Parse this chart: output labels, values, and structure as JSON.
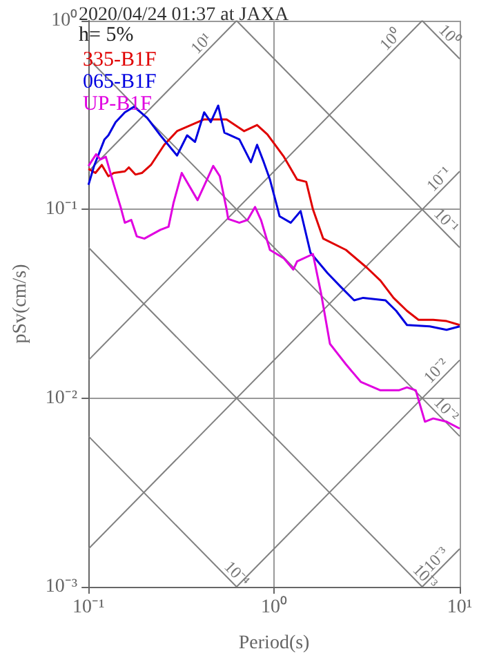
{
  "chart_data": {
    "type": "line",
    "title": "2020/04/24 01:37 at JAXA",
    "xlabel": "Period(s)",
    "ylabel": "pSv(cm/s)",
    "legend_title": "h= 5%",
    "legend": "top left",
    "grid": true,
    "log": "xy",
    "xlim": [
      0.1,
      10
    ],
    "xticks": [
      {
        "value": 0.1,
        "label": "10⁻¹"
      },
      {
        "value": 1,
        "label": "10⁰"
      },
      {
        "value": 10,
        "label": "10¹"
      }
    ],
    "ylim": [
      0.001,
      1
    ],
    "yticks": [
      {
        "value": 0.001,
        "label": "10⁻³"
      },
      {
        "value": 0.01,
        "label": "10⁻²"
      },
      {
        "value": 0.1,
        "label": "10⁻¹"
      },
      {
        "value": 1,
        "label": "10⁰"
      }
    ],
    "series": [
      {
        "type": "line",
        "color": "#808080",
        "x": [
          0.1,
          0.628
        ],
        "values": [
          0.159,
          1
        ]
      },
      {
        "type": "line",
        "color": "#808080",
        "x": [
          0.1,
          6.28
        ],
        "values": [
          0.0159,
          1
        ]
      },
      {
        "type": "line",
        "color": "#808080",
        "x": [
          0.1,
          10
        ],
        "values": [
          0.00159,
          0.159
        ]
      },
      {
        "type": "line",
        "color": "#808080",
        "x": [
          0.628,
          10
        ],
        "values": [
          0.001,
          0.0159
        ]
      },
      {
        "type": "line",
        "color": "#808080",
        "x": [
          6.28,
          10
        ],
        "values": [
          0.001,
          0.00159
        ]
      },
      {
        "type": "line",
        "color": "#808080",
        "x": [
          6.28,
          10
        ],
        "values": [
          1,
          0.628
        ]
      },
      {
        "type": "line",
        "color": "#808080",
        "x": [
          0.628,
          10
        ],
        "values": [
          1,
          0.0628
        ]
      },
      {
        "type": "line",
        "color": "#808080",
        "x": [
          0.1,
          10
        ],
        "values": [
          0.628,
          0.00628
        ]
      },
      {
        "type": "line",
        "color": "#808080",
        "x": [
          0.1,
          6.28
        ],
        "values": [
          0.0628,
          0.001
        ]
      },
      {
        "type": "line",
        "color": "#808080",
        "x": [
          0.1,
          0.628
        ],
        "values": [
          0.00628,
          0.001
        ]
      },
      {
        "name": "335-B1F",
        "color": "#e00000",
        "x": [
          0.1,
          0.109,
          0.118,
          0.128,
          0.137,
          0.157,
          0.165,
          0.179,
          0.194,
          0.217,
          0.256,
          0.3,
          0.42,
          0.555,
          0.69,
          0.81,
          0.92,
          1.13,
          1.33,
          1.49,
          1.62,
          1.84,
          2.44,
          3.17,
          3.74,
          4.4,
          5.2,
          6.0,
          7.2,
          8.5,
          10
        ],
        "values": [
          0.164,
          0.156,
          0.172,
          0.15,
          0.156,
          0.159,
          0.167,
          0.153,
          0.156,
          0.172,
          0.22,
          0.26,
          0.3,
          0.3,
          0.26,
          0.28,
          0.25,
          0.19,
          0.144,
          0.14,
          0.1,
          0.07,
          0.061,
          0.049,
          0.042,
          0.034,
          0.029,
          0.026,
          0.026,
          0.0256,
          0.0244
        ]
      },
      {
        "name": "065-B1F",
        "color": "#0000e0",
        "x": [
          0.1,
          0.107,
          0.122,
          0.128,
          0.14,
          0.157,
          0.176,
          0.207,
          0.244,
          0.3,
          0.34,
          0.375,
          0.42,
          0.456,
          0.5,
          0.54,
          0.65,
          0.75,
          0.81,
          0.88,
          0.95,
          1.04,
          1.07,
          1.23,
          1.39,
          1.57,
          1.94,
          2.28,
          2.7,
          3.02,
          3.98,
          4.55,
          5.2,
          6.9,
          8.5,
          10
        ],
        "values": [
          0.135,
          0.169,
          0.235,
          0.247,
          0.29,
          0.327,
          0.35,
          0.306,
          0.247,
          0.193,
          0.247,
          0.228,
          0.327,
          0.29,
          0.355,
          0.255,
          0.235,
          0.178,
          0.22,
          0.178,
          0.144,
          0.103,
          0.092,
          0.085,
          0.098,
          0.059,
          0.046,
          0.039,
          0.033,
          0.034,
          0.033,
          0.029,
          0.0244,
          0.024,
          0.023,
          0.024
        ]
      },
      {
        "name": "UP-B1F",
        "color": "#e000e0",
        "x": [
          0.1,
          0.11,
          0.116,
          0.124,
          0.137,
          0.149,
          0.157,
          0.17,
          0.182,
          0.2,
          0.244,
          0.27,
          0.287,
          0.318,
          0.387,
          0.47,
          0.51,
          0.555,
          0.566,
          0.65,
          0.72,
          0.79,
          0.85,
          0.95,
          1.13,
          1.27,
          1.33,
          1.62,
          1.79,
          2.0,
          2.44,
          2.93,
          3.74,
          4.7,
          5.2,
          5.8,
          6.5,
          7.2,
          8.5,
          10
        ],
        "values": [
          0.17,
          0.196,
          0.184,
          0.19,
          0.135,
          0.103,
          0.085,
          0.088,
          0.072,
          0.07,
          0.078,
          0.081,
          0.108,
          0.156,
          0.112,
          0.17,
          0.15,
          0.1,
          0.089,
          0.085,
          0.088,
          0.103,
          0.088,
          0.061,
          0.055,
          0.048,
          0.053,
          0.058,
          0.036,
          0.0194,
          0.0151,
          0.0122,
          0.011,
          0.011,
          0.0114,
          0.011,
          0.0075,
          0.0078,
          0.0075,
          0.0069
        ]
      }
    ],
    "annotations": [
      {
        "text": "10¹",
        "x": 0.44,
        "y": 0.7
      },
      {
        "text": "10⁰",
        "x": 4.6,
        "y": 0.732
      },
      {
        "text": "10⁰",
        "x": 8.1,
        "y": 0.776
      },
      {
        "text": "10⁻¹",
        "x": 8.4,
        "y": 0.1337
      },
      {
        "text": "10⁻¹",
        "x": 7.8,
        "y": 0.0806
      },
      {
        "text": "10⁻²",
        "x": 8.1,
        "y": 0.0129
      },
      {
        "text": "10⁻²",
        "x": 7.8,
        "y": 0.00806
      },
      {
        "text": "10⁻⁴",
        "x": 0.58,
        "y": 0.001083
      },
      {
        "text": "10⁻³",
        "x": 6.0,
        "y": 0.001047
      },
      {
        "text": "10⁻³",
        "x": 8.1,
        "y": 0.001289
      }
    ]
  }
}
